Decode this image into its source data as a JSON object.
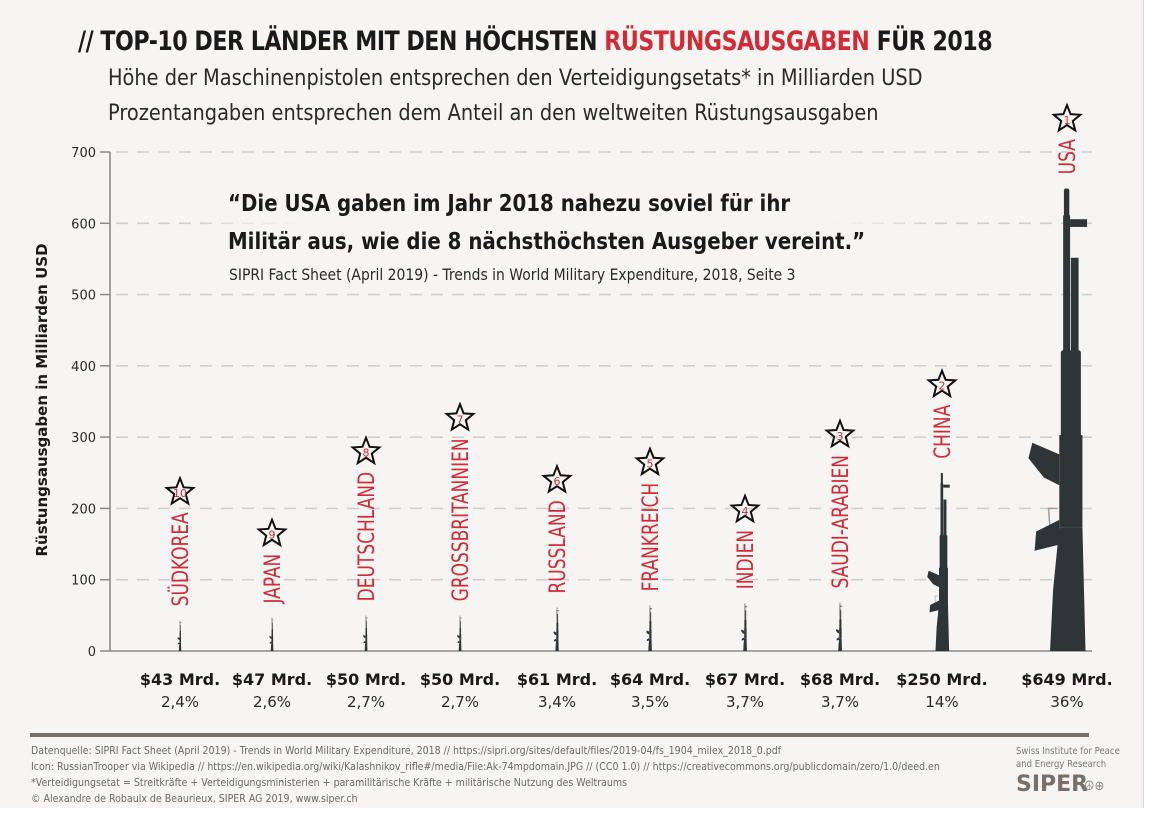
{
  "header": {
    "title_prefix": "// TOP-10 DER LÄNDER MIT DEN HÖCHSTEN ",
    "title_accent": "RÜSTUNGSAUSGABEN",
    "title_suffix": " FÜR 2018",
    "subtitle_1": "Höhe der Maschinenpistolen entsprechen den Verteidigungsetats* in Milliarden USD",
    "subtitle_2": "Prozentangaben entsprechen dem Anteil an den weltweiten Rüstungsausgaben"
  },
  "quote": {
    "line_1": "“Die USA gaben im Jahr 2018 nahezu soviel für ihr",
    "line_2": "Militär aus, wie die 8 nächsthöchsten Ausgeber vereint.”",
    "source": "SIPRI Fact Sheet (April 2019) - Trends in World Military Expenditure, 2018, Seite 3"
  },
  "colors": {
    "accent": "#d42a35",
    "text": "#1a1a1a",
    "gridline": "#cfcfcf",
    "axis": "#8a8a8a",
    "rifle": "#2f3536",
    "background": "#f6f5f3",
    "footer_rule": "#7a6f68"
  },
  "chart_data": {
    "type": "bar",
    "title": "// TOP-10 DER LÄNDER MIT DEN HÖCHSTEN RÜSTUNGSAUSGABEN FÜR 2018",
    "xlabel": "",
    "ylabel": "Rüstungsausgaben in Milliarden USD",
    "ylim": [
      0,
      700
    ],
    "yticks": [
      0,
      100,
      200,
      300,
      400,
      500,
      600,
      700
    ],
    "grid": true,
    "mark": "rifle-icon",
    "categories": [
      "SÜDKOREA",
      "JAPAN",
      "DEUTSCHLAND",
      "GROSSBRITANNIEN",
      "RUSSLAND",
      "FRANKREICH",
      "INDIEN",
      "SAUDI-ARABIEN",
      "CHINA",
      "USA"
    ],
    "values": [
      43,
      47,
      50,
      50,
      61,
      64,
      67,
      68,
      250,
      649
    ],
    "ranks": [
      10,
      9,
      8,
      7,
      6,
      5,
      4,
      3,
      2,
      1
    ],
    "value_labels": [
      "$43 Mrd.",
      "$47 Mrd.",
      "$50 Mrd.",
      "$50 Mrd.",
      "$61 Mrd.",
      "$64 Mrd.",
      "$67 Mrd.",
      "$68 Mrd.",
      "$250 Mrd.",
      "$649 Mrd."
    ],
    "share_labels": [
      "2,4%",
      "2,6%",
      "2,7%",
      "2,7%",
      "3,4%",
      "3,5%",
      "3,7%",
      "3,7%",
      "14%",
      "36%"
    ],
    "share_percent": [
      2.4,
      2.6,
      2.7,
      2.7,
      3.4,
      3.5,
      3.7,
      3.7,
      14,
      36
    ]
  },
  "footer": {
    "note_1": "Datenquelle: SIPRI Fact Sheet (April 2019) - Trends in World Military Expenditure, 2018 // https://sipri.org/sites/default/files/2019-04/fs_1904_milex_2018_0.pdf",
    "note_2": "Icon: RussianTrooper via Wikipedia // https://en.wikipedia.org/wiki/Kalashnikov_rifle#/media/File:Ak-74mpdomain.JPG // (CC0 1.0) // https://creativecommons.org/publicdomain/zero/1.0/deed.en",
    "note_3": "*Verteidigungsetat = Streitkräfte + Verteidigungsministerien + paramilitärische Kräfte + militärische Nutzung des Weltraums",
    "note_4": "© Alexandre de Robaulx de Beaurieux, SIPER AG 2019, www.siper.ch",
    "org_line_1": "Swiss Institute for Peace",
    "org_line_2": "and Energy Research",
    "logo": "SIPER",
    "logo_icons": "☮⊕"
  }
}
